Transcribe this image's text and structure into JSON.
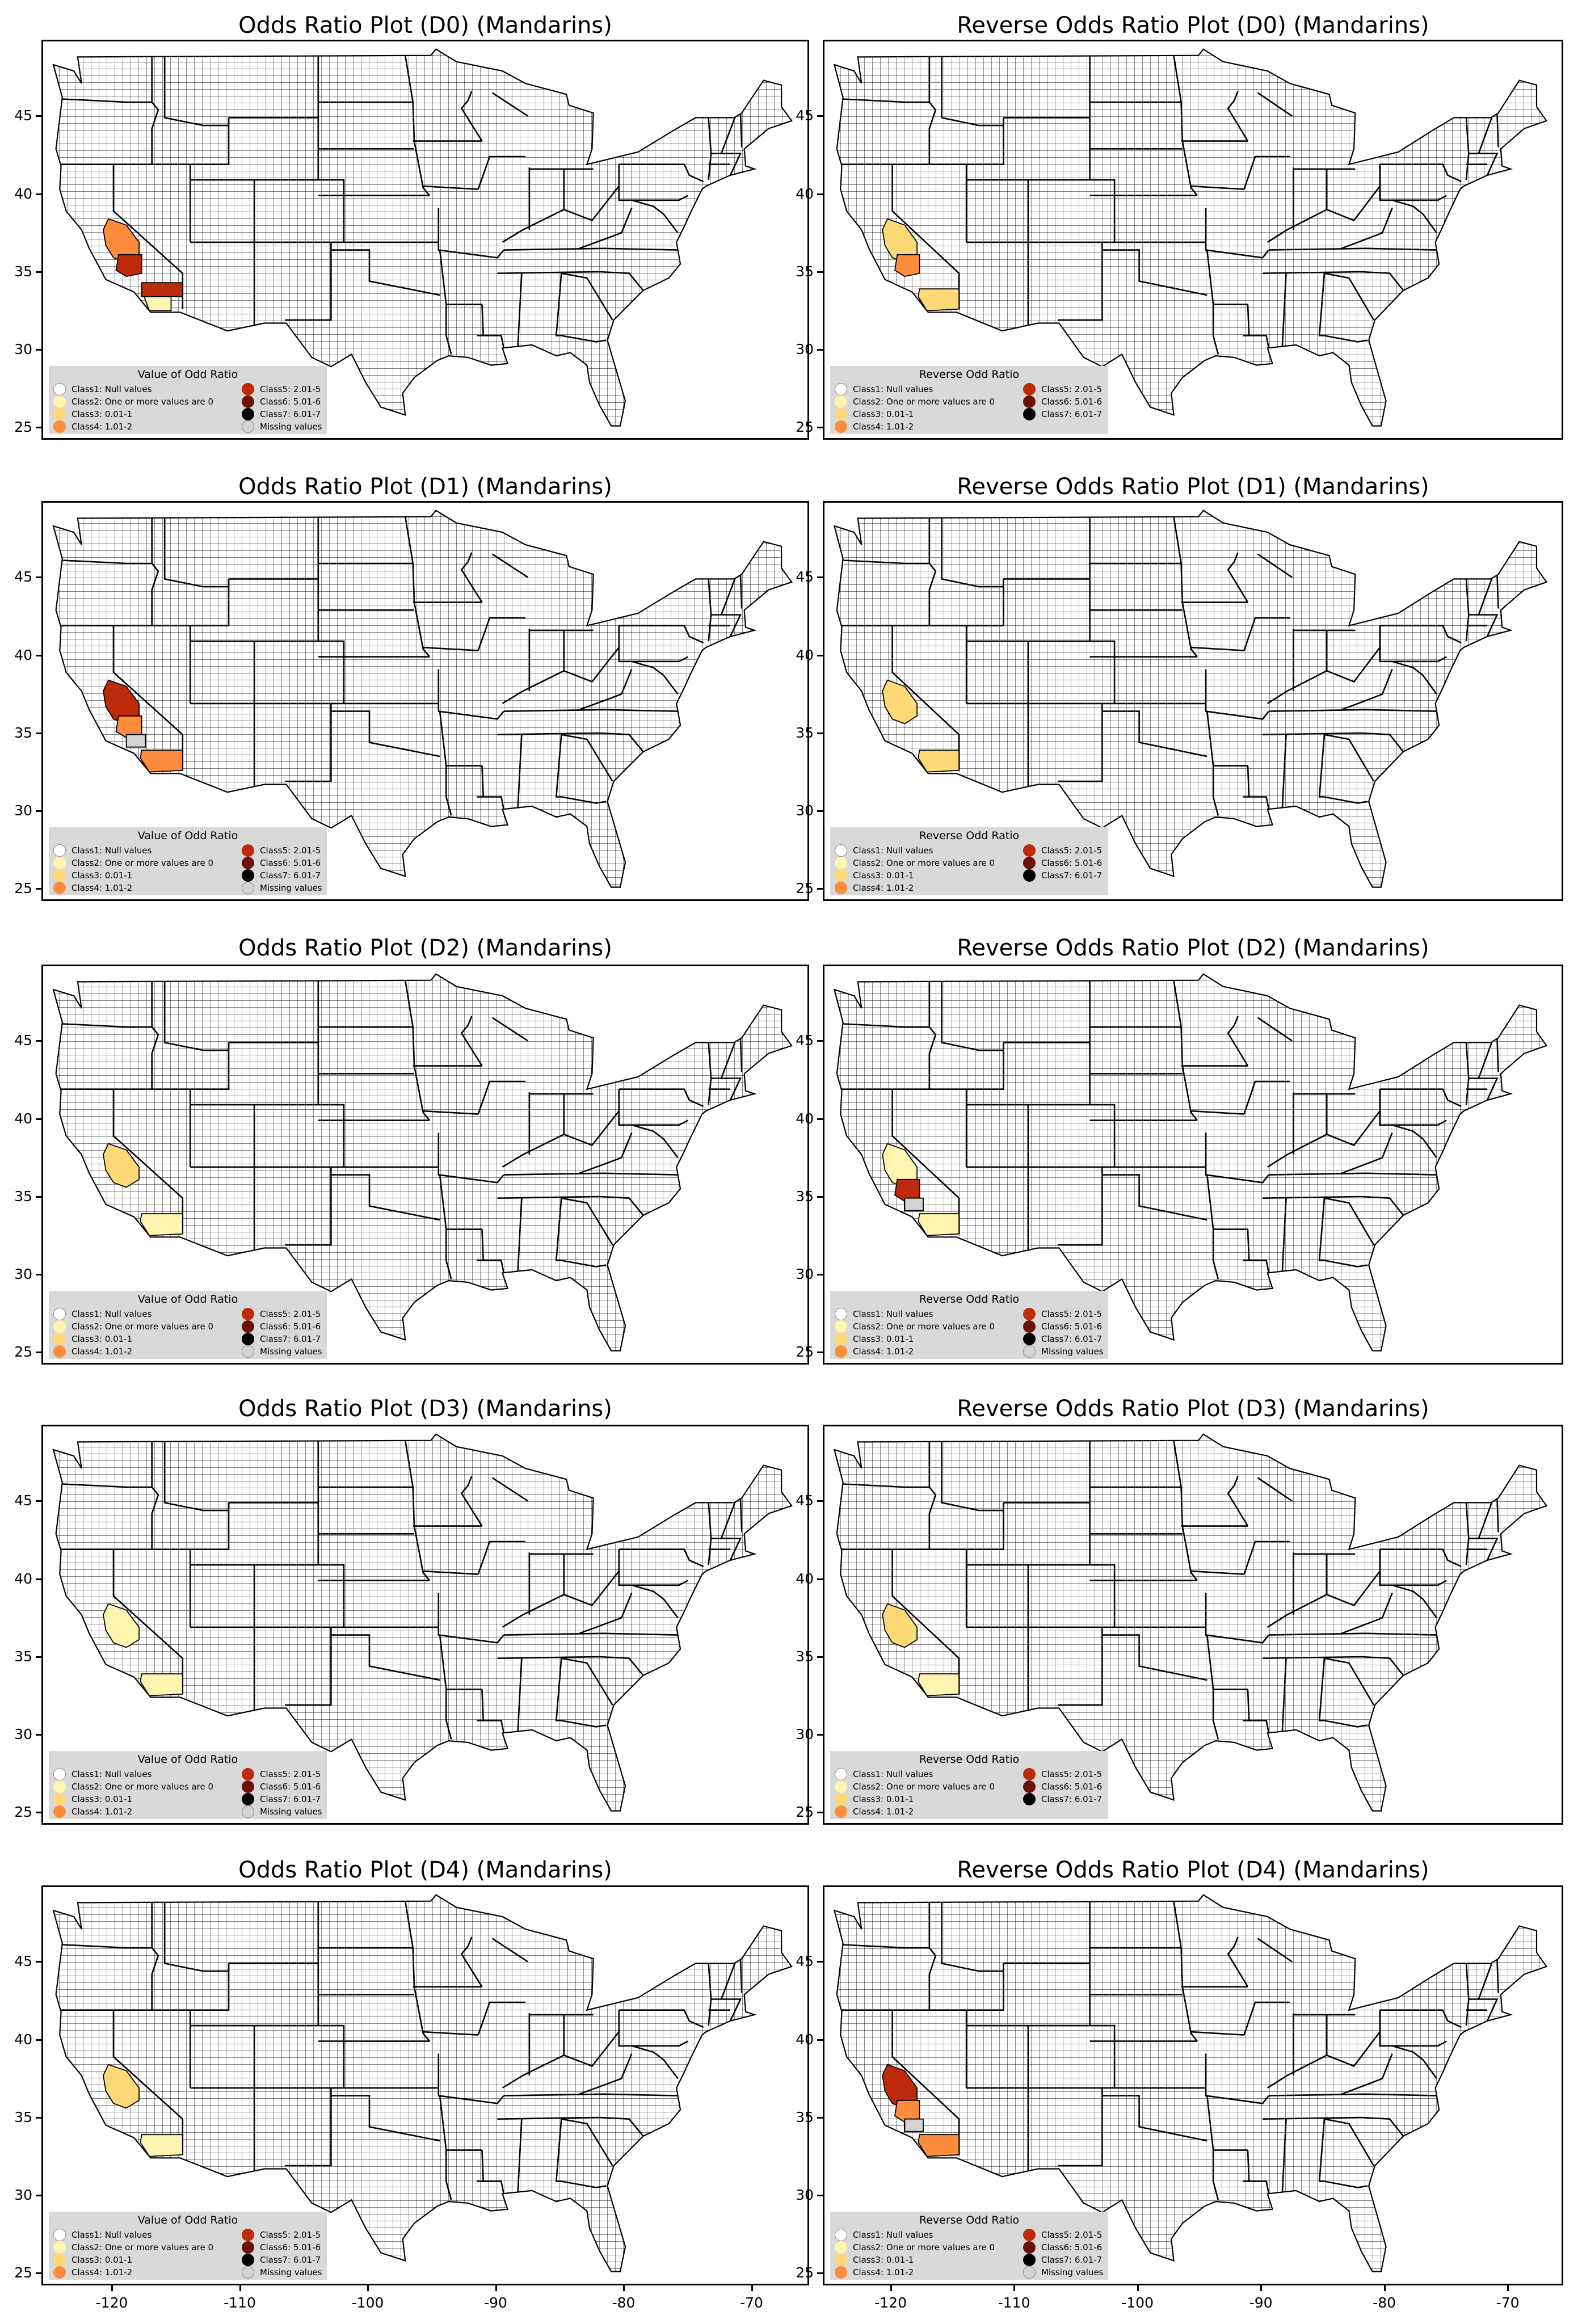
{
  "colors": {
    "class1": "#ffffff",
    "class2": "#fff4b0",
    "class3": "#fed976",
    "class4": "#fd8d3c",
    "class5": "#bd2b0a",
    "class6": "#6b1208",
    "class7": "#000000",
    "missing": "#d4d4d4"
  },
  "legend_labels": {
    "class1": "Class1: Null values",
    "class2": "Class2: One or more values are 0",
    "class3": "Class3: 0.01-1",
    "class4": "Class4: 1.01-2",
    "class5": "Class5: 2.01-5",
    "class6": "Class6: 5.01-6",
    "class7": "Class7: 6.01-7",
    "missing": "Missing values"
  },
  "legend_titles": {
    "odds": "Value of Odd Ratio",
    "reverse": "Reverse Odd Ratio"
  },
  "axes": {
    "y_ticks": [
      "45",
      "40",
      "35",
      "30",
      "25"
    ],
    "x_ticks": [
      "-120",
      "-110",
      "-100",
      "-90",
      "-80",
      "-70"
    ]
  },
  "chart_data": [
    {
      "type": "map",
      "title": "Odds Ratio Plot (D0) (Mandarins)",
      "legend": "odds",
      "has_missing": true,
      "highlighted_counties": [
        {
          "region": "California central",
          "class": "class4"
        },
        {
          "region": "California south-central",
          "class": "class5"
        },
        {
          "region": "California southeast",
          "class": "class5"
        },
        {
          "region": "California southern coast",
          "class": "class2"
        }
      ]
    },
    {
      "type": "map",
      "title": "Reverse Odds Ratio Plot (D0) (Mandarins)",
      "legend": "reverse",
      "has_missing": false,
      "highlighted_counties": [
        {
          "region": "California central",
          "class": "class3"
        },
        {
          "region": "California south-central",
          "class": "class4"
        },
        {
          "region": "California south",
          "class": "class3"
        }
      ]
    },
    {
      "type": "map",
      "title": "Odds Ratio Plot (D1) (Mandarins)",
      "legend": "odds",
      "has_missing": true,
      "highlighted_counties": [
        {
          "region": "California central",
          "class": "class5"
        },
        {
          "region": "California south-central",
          "class": "class4"
        },
        {
          "region": "California south",
          "class": "class4"
        },
        {
          "region": "California",
          "class": "missing"
        }
      ]
    },
    {
      "type": "map",
      "title": "Reverse Odds Ratio Plot (D1) (Mandarins)",
      "legend": "reverse",
      "has_missing": false,
      "highlighted_counties": [
        {
          "region": "California central",
          "class": "class3"
        },
        {
          "region": "California south",
          "class": "class3"
        }
      ]
    },
    {
      "type": "map",
      "title": "Odds Ratio Plot (D2) (Mandarins)",
      "legend": "odds",
      "has_missing": true,
      "highlighted_counties": [
        {
          "region": "California central",
          "class": "class3"
        },
        {
          "region": "California south",
          "class": "class2"
        }
      ]
    },
    {
      "type": "map",
      "title": "Reverse Odds Ratio Plot (D2) (Mandarins)",
      "legend": "reverse",
      "has_missing": true,
      "highlighted_counties": [
        {
          "region": "California central",
          "class": "class2"
        },
        {
          "region": "California south-central",
          "class": "class5"
        },
        {
          "region": "California",
          "class": "missing"
        },
        {
          "region": "California south",
          "class": "class2"
        }
      ]
    },
    {
      "type": "map",
      "title": "Odds Ratio Plot (D3) (Mandarins)",
      "legend": "odds",
      "has_missing": true,
      "highlighted_counties": [
        {
          "region": "California central",
          "class": "class2"
        },
        {
          "region": "California south",
          "class": "class2"
        }
      ]
    },
    {
      "type": "map",
      "title": "Reverse Odds Ratio Plot (D3) (Mandarins)",
      "legend": "reverse",
      "has_missing": false,
      "highlighted_counties": [
        {
          "region": "California central",
          "class": "class3"
        },
        {
          "region": "California south",
          "class": "class2"
        }
      ]
    },
    {
      "type": "map",
      "title": "Odds Ratio Plot (D4) (Mandarins)",
      "legend": "odds",
      "has_missing": true,
      "highlighted_counties": [
        {
          "region": "California central",
          "class": "class3"
        },
        {
          "region": "California south",
          "class": "class2"
        }
      ]
    },
    {
      "type": "map",
      "title": "Reverse Odds Ratio Plot (D4) (Mandarins)",
      "legend": "reverse",
      "has_missing": true,
      "highlighted_counties": [
        {
          "region": "California central",
          "class": "class5"
        },
        {
          "region": "California south-central",
          "class": "class4"
        },
        {
          "region": "California",
          "class": "missing"
        },
        {
          "region": "California south",
          "class": "class4"
        }
      ]
    }
  ]
}
